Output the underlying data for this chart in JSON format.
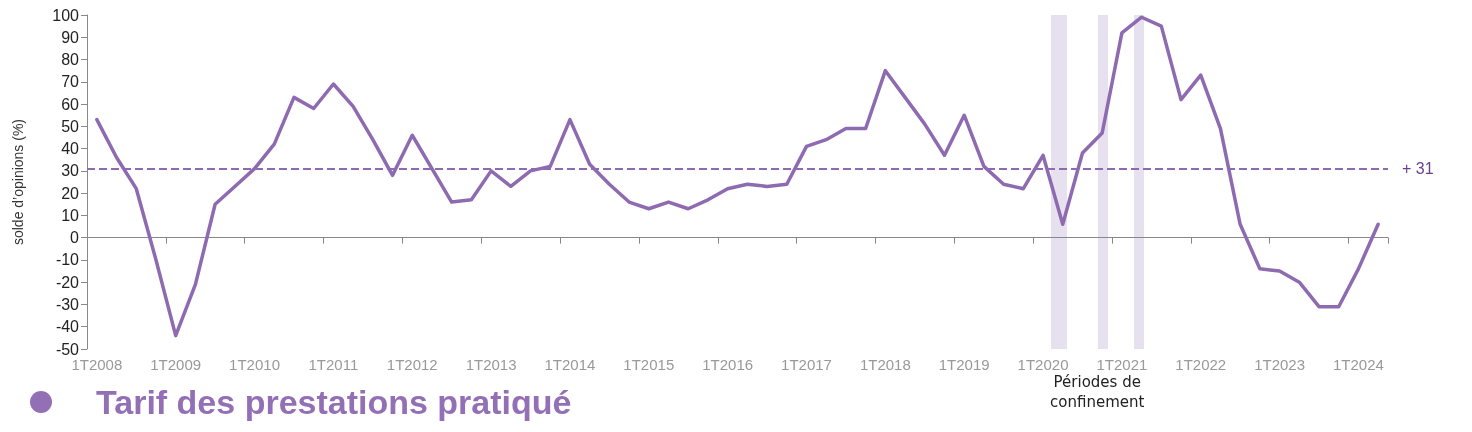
{
  "chart_data": {
    "type": "line",
    "title": "Tarif des prestations pratiqué",
    "ylabel": "solde d’opinions (%)",
    "categories": [
      "1T2008",
      null,
      null,
      null,
      "1T2009",
      null,
      null,
      null,
      "1T2010",
      null,
      null,
      null,
      "1T2011",
      null,
      null,
      null,
      "1T2012",
      null,
      null,
      null,
      "1T2013",
      null,
      null,
      null,
      "1T2014",
      null,
      null,
      null,
      "1T2015",
      null,
      null,
      null,
      "1T2016",
      null,
      null,
      null,
      "1T2017",
      null,
      null,
      null,
      "1T2018",
      null,
      null,
      null,
      "1T2019",
      null,
      null,
      null,
      "1T2020",
      null,
      null,
      null,
      "1T2021",
      null,
      null,
      null,
      "1T2022",
      null,
      null,
      null,
      "1T2023",
      null,
      null,
      null,
      "1T2024",
      null
    ],
    "series": [
      {
        "color": "#8e6bb0",
        "values": [
          53,
          36,
          22,
          -10,
          -44,
          -21,
          15,
          23,
          31,
          42,
          63,
          58,
          69,
          59,
          44,
          28,
          46,
          31,
          16,
          17,
          30,
          23,
          30,
          32,
          53,
          33,
          24,
          16,
          13,
          16,
          13,
          17,
          22,
          24,
          23,
          24,
          41,
          44,
          49,
          49,
          75,
          63,
          51,
          37,
          55,
          32,
          24,
          22,
          37,
          6,
          38,
          47,
          92,
          99,
          95,
          62,
          73,
          49,
          6,
          -14,
          -15,
          -20,
          -31,
          -31,
          -14,
          6
        ]
      }
    ],
    "ylim": [
      -50,
      100
    ],
    "yticks": [
      -50,
      -40,
      -30,
      -20,
      -10,
      0,
      10,
      20,
      30,
      40,
      50,
      60,
      70,
      80,
      90,
      100
    ],
    "ref_lines": [
      {
        "axis": "y",
        "value": 31,
        "label": "+ 31",
        "color": "#8e6bb0",
        "line_style": "dashed"
      }
    ],
    "annotations": [
      "Périodes de confinement"
    ],
    "marker": "none",
    "line_style": "solid"
  }
}
